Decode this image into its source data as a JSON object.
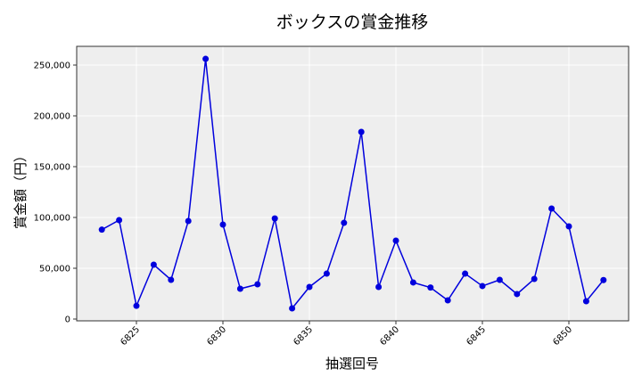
{
  "chart_data": {
    "type": "line",
    "title": "ボックスの賞金推移",
    "xlabel": "抽選回号",
    "ylabel": "賞金額（円）",
    "x": [
      6823,
      6824,
      6825,
      6826,
      6827,
      6828,
      6829,
      6830,
      6831,
      6832,
      6833,
      6834,
      6835,
      6836,
      6837,
      6838,
      6839,
      6840,
      6841,
      6842,
      6843,
      6844,
      6845,
      6846,
      6847,
      6848,
      6849,
      6850,
      6851,
      6852
    ],
    "series": [
      {
        "name": "ボックス",
        "color": "#0000dd",
        "values": [
          88000,
          97400,
          13000,
          53500,
          38600,
          96500,
          256100,
          93000,
          29800,
          34200,
          99000,
          10500,
          31600,
          44700,
          94700,
          184200,
          31600,
          77200,
          36000,
          31000,
          18400,
          44700,
          32500,
          38600,
          24600,
          39500,
          108800,
          91200,
          17500,
          38400
        ]
      }
    ],
    "xticks": [
      6825,
      6830,
      6835,
      6840,
      6845,
      6850
    ],
    "yticks": [
      0,
      50000,
      100000,
      150000,
      200000,
      250000
    ],
    "ytick_labels": [
      "0",
      "50,000",
      "100,000",
      "150,000",
      "200,000",
      "250,000"
    ],
    "ylim": [
      -2000,
      268000
    ],
    "grid": true,
    "legend": null,
    "background": "#eeeeee"
  }
}
